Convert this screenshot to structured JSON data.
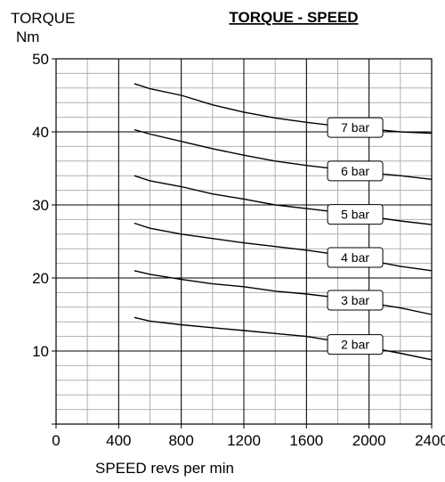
{
  "chart_data": {
    "type": "line",
    "title": "TORQUE - SPEED",
    "ylabel_line1": "TORQUE",
    "ylabel_line2": "Nm",
    "xlabel": "SPEED revs per min",
    "xlim": [
      0,
      2400
    ],
    "ylim": [
      0,
      50
    ],
    "x_ticks": [
      0,
      400,
      800,
      1200,
      1600,
      2000,
      2400
    ],
    "y_ticks": [
      10,
      20,
      30,
      40,
      50
    ],
    "grid": true,
    "series": [
      {
        "name": "7 bar",
        "x": [
          500,
          600,
          800,
          1000,
          1200,
          1400,
          1600,
          1800,
          2000,
          2200,
          2400
        ],
        "y": [
          46.6,
          45.9,
          45.0,
          43.7,
          42.7,
          41.9,
          41.3,
          40.8,
          40.4,
          40.0,
          39.8
        ]
      },
      {
        "name": "6 bar",
        "x": [
          500,
          600,
          800,
          1000,
          1200,
          1400,
          1600,
          1800,
          2000,
          2200,
          2400
        ],
        "y": [
          40.3,
          39.7,
          38.7,
          37.7,
          36.8,
          36.0,
          35.4,
          34.9,
          34.4,
          34.0,
          33.5
        ]
      },
      {
        "name": "5 bar",
        "x": [
          500,
          600,
          800,
          1000,
          1200,
          1400,
          1600,
          1800,
          2000,
          2200,
          2400
        ],
        "y": [
          34.0,
          33.3,
          32.5,
          31.5,
          30.8,
          30.0,
          29.5,
          29.0,
          28.4,
          27.8,
          27.3
        ]
      },
      {
        "name": "4 bar",
        "x": [
          500,
          600,
          800,
          1000,
          1200,
          1400,
          1600,
          1800,
          2000,
          2200,
          2400
        ],
        "y": [
          27.5,
          26.8,
          26.0,
          25.4,
          24.8,
          24.3,
          23.8,
          23.2,
          22.4,
          21.6,
          21.0
        ]
      },
      {
        "name": "3 bar",
        "x": [
          500,
          600,
          800,
          1000,
          1200,
          1400,
          1600,
          1800,
          2000,
          2200,
          2400
        ],
        "y": [
          21.0,
          20.5,
          19.8,
          19.2,
          18.8,
          18.2,
          17.8,
          17.3,
          16.6,
          15.9,
          15.0
        ]
      },
      {
        "name": "2 bar",
        "x": [
          500,
          600,
          800,
          1000,
          1200,
          1400,
          1600,
          1800,
          2000,
          2200,
          2400
        ],
        "y": [
          14.6,
          14.1,
          13.6,
          13.2,
          12.8,
          12.4,
          12.0,
          11.3,
          10.5,
          9.7,
          8.8
        ]
      }
    ],
    "legend_placement": "inline-right"
  }
}
